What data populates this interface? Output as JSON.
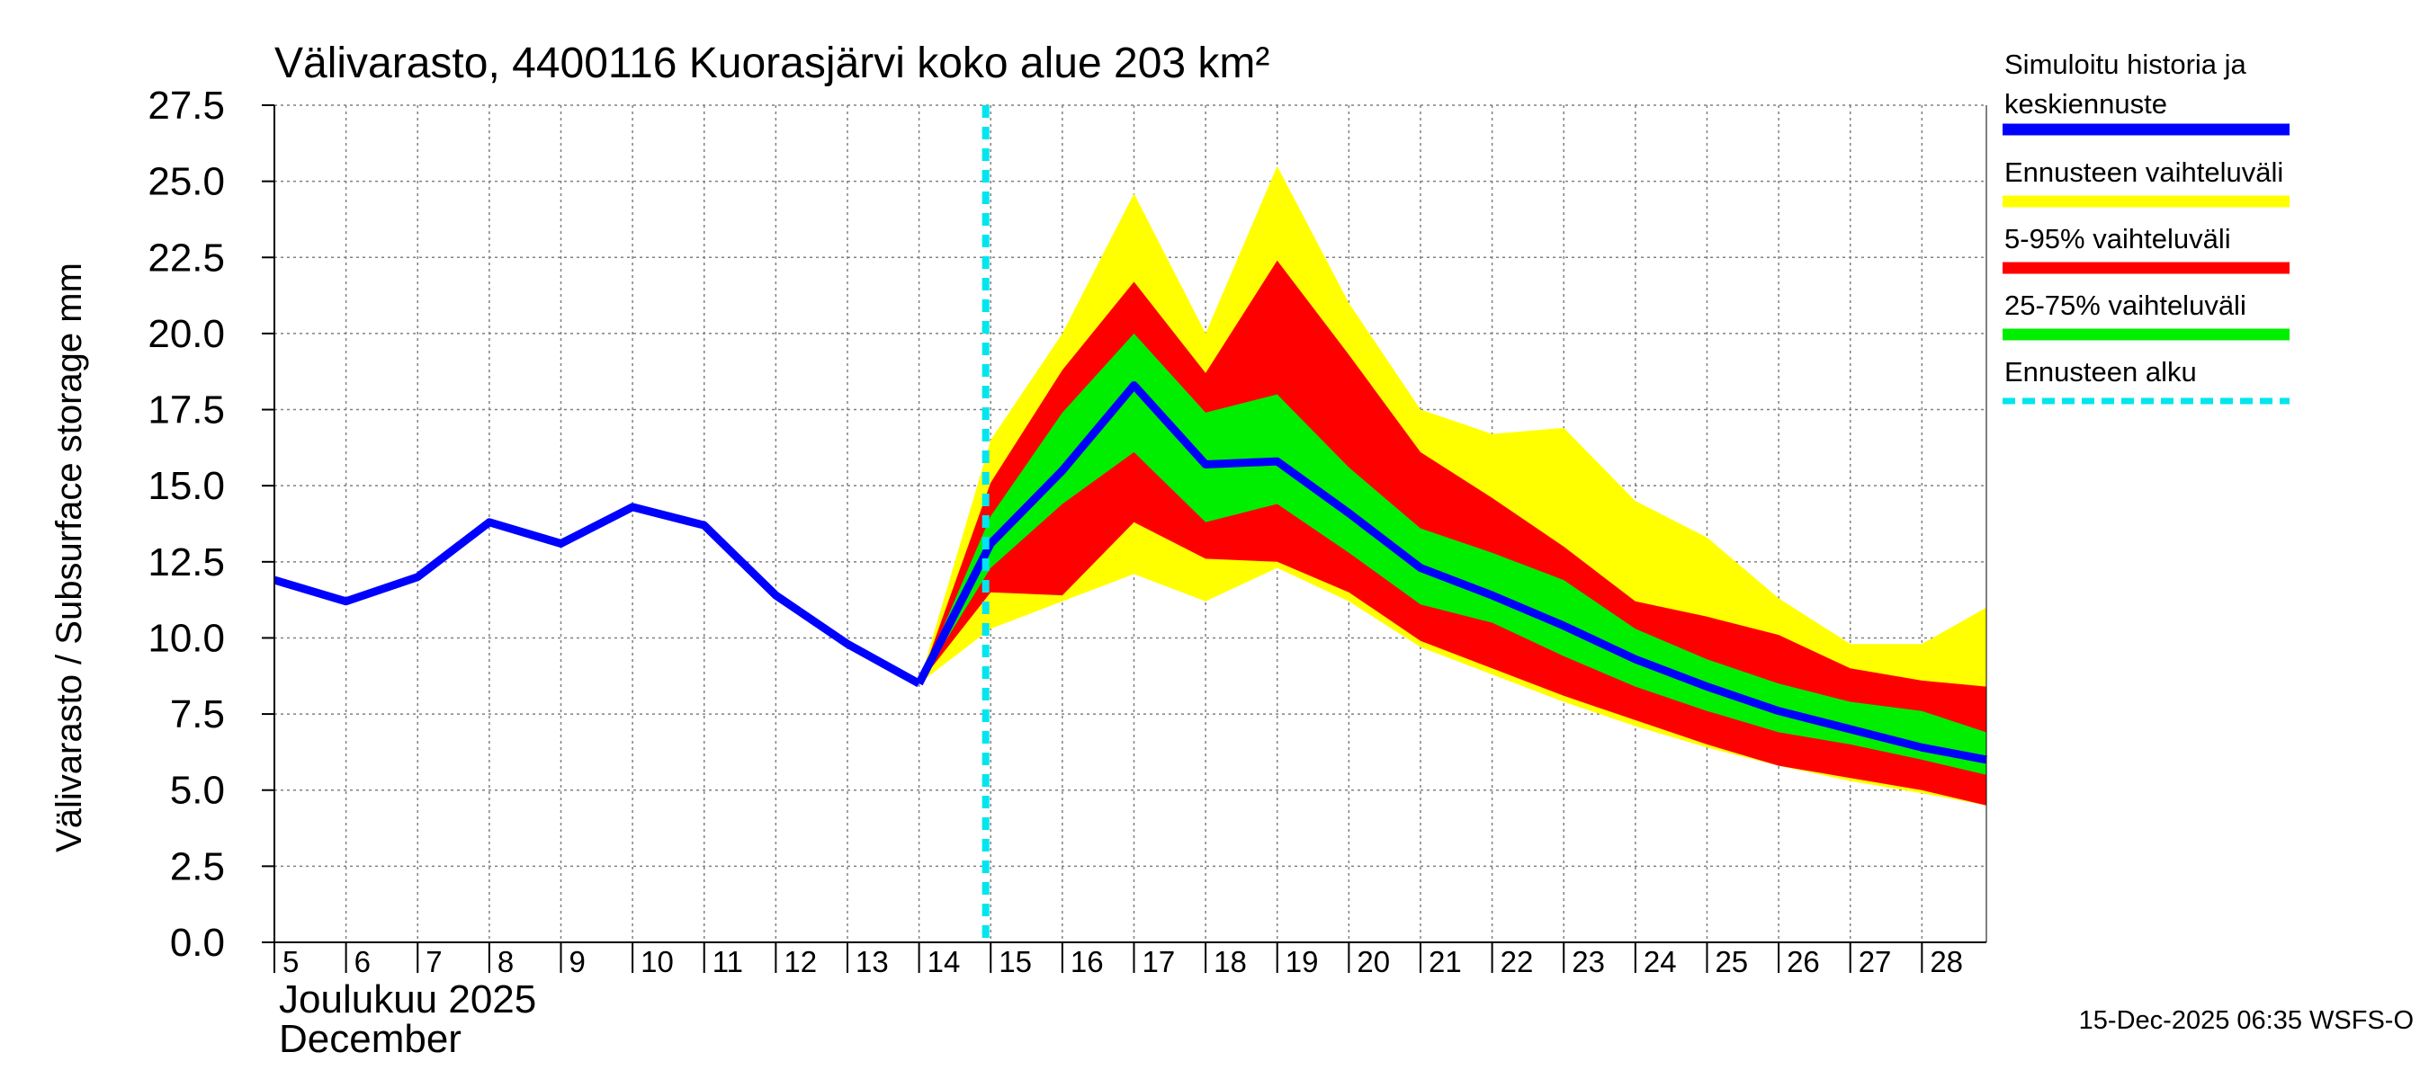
{
  "chart_data": {
    "type": "area",
    "title": "Välivarasto, 4400116 Kuorasjärvi koko alue 203 km²",
    "ylabel": "Välivarasto / Subsurface storage  mm",
    "xlabel_line1": "Joulukuu  2025",
    "xlabel_line2": "December",
    "ylim": [
      0,
      27.5
    ],
    "xlim": [
      5,
      28.9
    ],
    "yticks": [
      "0.0",
      "2.5",
      "5.0",
      "7.5",
      "10.0",
      "12.5",
      "15.0",
      "17.5",
      "20.0",
      "22.5",
      "25.0",
      "27.5"
    ],
    "xticks": [
      "5",
      "6",
      "7",
      "8",
      "9",
      "10",
      "11",
      "12",
      "13",
      "14",
      "15",
      "16",
      "17",
      "18",
      "19",
      "20",
      "21",
      "22",
      "23",
      "24",
      "25",
      "26",
      "27",
      "28"
    ],
    "forecast_start": 14.93,
    "history": {
      "name": "Simuloitu historia ja keskiennuste",
      "x": [
        5,
        6,
        7,
        8,
        9,
        10,
        11,
        12,
        13,
        14
      ],
      "values": [
        11.9,
        11.2,
        12.0,
        13.8,
        13.1,
        14.3,
        13.7,
        11.4,
        9.8,
        8.5
      ]
    },
    "forecast_x": [
      14,
      15,
      16,
      17,
      18,
      19,
      20,
      21,
      22,
      23,
      24,
      25,
      26,
      27,
      28,
      28.9
    ],
    "median": [
      8.5,
      13.1,
      15.5,
      18.3,
      15.7,
      15.8,
      14.1,
      12.3,
      11.4,
      10.4,
      9.3,
      8.4,
      7.6,
      7.0,
      6.4,
      6.0
    ],
    "range_min": [
      8.5,
      10.3,
      11.2,
      12.1,
      11.2,
      12.3,
      11.2,
      9.7,
      8.8,
      7.9,
      7.1,
      6.4,
      5.8,
      5.3,
      4.9,
      4.5
    ],
    "range_max": [
      8.5,
      16.5,
      20.0,
      24.6,
      20.0,
      25.5,
      21.0,
      17.5,
      16.7,
      16.9,
      14.5,
      13.3,
      11.3,
      9.8,
      9.8,
      11.0
    ],
    "p5": [
      8.5,
      11.5,
      11.4,
      13.8,
      12.6,
      12.5,
      11.5,
      9.9,
      9.0,
      8.1,
      7.3,
      6.5,
      5.8,
      5.4,
      5.0,
      4.5
    ],
    "p95": [
      8.5,
      15.1,
      18.8,
      21.7,
      18.7,
      22.4,
      19.3,
      16.1,
      14.6,
      13.0,
      11.2,
      10.7,
      10.1,
      9.0,
      8.6,
      8.4
    ],
    "p25": [
      8.5,
      12.3,
      14.4,
      16.1,
      13.8,
      14.4,
      12.8,
      11.1,
      10.5,
      9.4,
      8.4,
      7.6,
      6.9,
      6.5,
      6.0,
      5.5
    ],
    "p75": [
      8.5,
      14.0,
      17.4,
      20.0,
      17.4,
      18.0,
      15.6,
      13.6,
      12.8,
      11.9,
      10.3,
      9.3,
      8.5,
      7.9,
      7.6,
      6.9
    ],
    "legend": [
      {
        "label_line1": "Simuloitu historia ja",
        "label_line2": "keskiennuste",
        "color": "#0000ff",
        "style": "solid"
      },
      {
        "label_line1": "Ennusteen vaihteluväli",
        "label_line2": "",
        "color": "#ffff00",
        "style": "solid"
      },
      {
        "label_line1": "5-95% vaihteluväli",
        "label_line2": "",
        "color": "#ff0000",
        "style": "solid"
      },
      {
        "label_line1": "25-75% vaihteluväli",
        "label_line2": "",
        "color": "#00ee00",
        "style": "solid"
      },
      {
        "label_line1": "Ennusteen alku",
        "label_line2": "",
        "color": "#00e5ee",
        "style": "dashed"
      }
    ],
    "legend_position": "right",
    "footer": "15-Dec-2025 06:35 WSFS-O",
    "colors": {
      "median": "#0000ff",
      "range": "#ffff00",
      "p5_95": "#ff0000",
      "p25_75": "#00ee00",
      "forecast_start": "#00e5ee",
      "grid": "#808080"
    }
  }
}
